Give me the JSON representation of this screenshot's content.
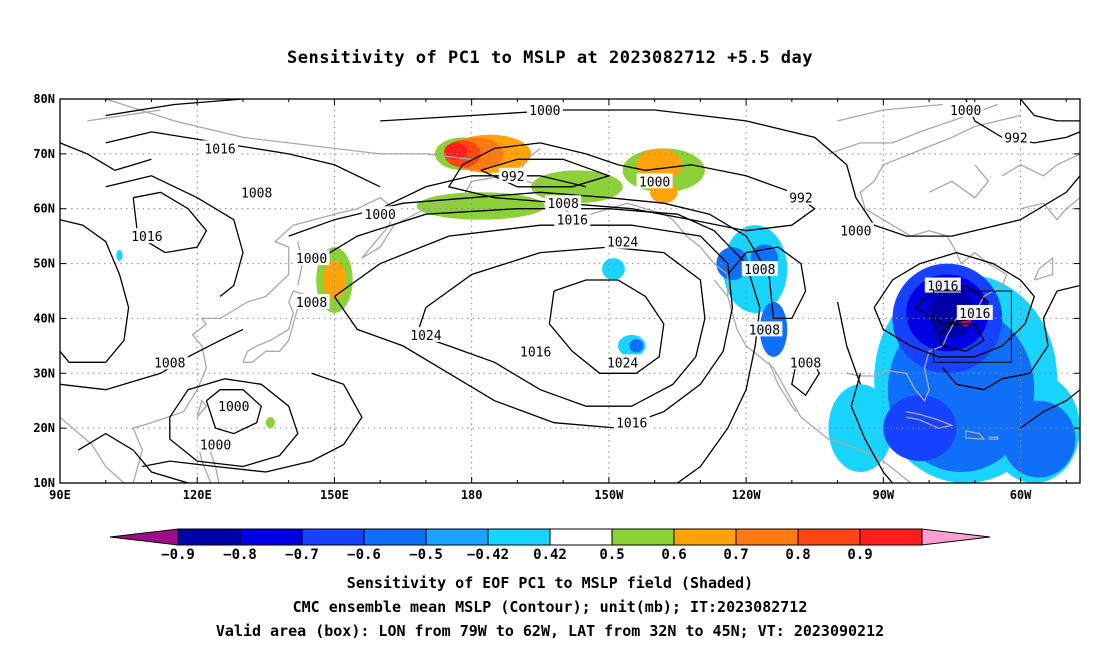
{
  "title": "Sensitivity of PC1 to MSLP at 2023082712 +5.5 day",
  "captions": [
    "Sensitivity of EOF PC1 to MSLP field (Shaded)",
    "CMC ensemble mean MSLP (Contour); unit(mb); IT:2023082712",
    "Valid area (box): LON from 79W to 62W, LAT from 32N to 45N; VT: 2023090212"
  ],
  "map": {
    "lat_labels": [
      "80N",
      "70N",
      "60N",
      "50N",
      "40N",
      "30N",
      "20N",
      "10N"
    ],
    "lon_labels": [
      "90E",
      "120E",
      "150E",
      "180",
      "150W",
      "120W",
      "90W",
      "60W"
    ],
    "extent": {
      "lon_min_east": 90,
      "lon_max_east": 313,
      "lat_min": 10,
      "lat_max": 80
    },
    "valid_box": {
      "lon_west": "79W",
      "lon_east": "62W",
      "lat_south": "32N",
      "lat_north": "45N"
    },
    "contour_labels": [
      {
        "text": "1000",
        "lon": 196,
        "lat": 78
      },
      {
        "text": "1000",
        "lon": 288,
        "lat": 78
      },
      {
        "text": "1016",
        "lon": 125,
        "lat": 71
      },
      {
        "text": "992",
        "lon": 299,
        "lat": 73
      },
      {
        "text": "992",
        "lon": 189,
        "lat": 66
      },
      {
        "text": "1000",
        "lon": 220,
        "lat": 65
      },
      {
        "text": "1008",
        "lon": 133,
        "lat": 63
      },
      {
        "text": "992",
        "lon": 252,
        "lat": 62
      },
      {
        "text": "1008",
        "lon": 200,
        "lat": 61
      },
      {
        "text": "1000",
        "lon": 160,
        "lat": 59
      },
      {
        "text": "1016",
        "lon": 202,
        "lat": 58
      },
      {
        "text": "1000",
        "lon": 264,
        "lat": 56
      },
      {
        "text": "1016",
        "lon": 109,
        "lat": 55
      },
      {
        "text": "1024",
        "lon": 213,
        "lat": 54
      },
      {
        "text": "1000",
        "lon": 145,
        "lat": 51
      },
      {
        "text": "1008",
        "lon": 243,
        "lat": 49
      },
      {
        "text": "1016",
        "lon": 283,
        "lat": 46
      },
      {
        "text": "1008",
        "lon": 145,
        "lat": 43
      },
      {
        "text": "1016",
        "lon": 290,
        "lat": 41
      },
      {
        "text": "1008",
        "lon": 244,
        "lat": 38
      },
      {
        "text": "1024",
        "lon": 170,
        "lat": 37
      },
      {
        "text": "1016",
        "lon": 194,
        "lat": 34
      },
      {
        "text": "1008",
        "lon": 114,
        "lat": 32
      },
      {
        "text": "1024",
        "lon": 213,
        "lat": 32
      },
      {
        "text": "1008",
        "lon": 253,
        "lat": 32
      },
      {
        "text": "1000",
        "lon": 128,
        "lat": 24
      },
      {
        "text": "1016",
        "lon": 215,
        "lat": 21
      },
      {
        "text": "1000",
        "lon": 124,
        "lat": 17
      }
    ]
  },
  "colorbar": {
    "labels": [
      "−0.9",
      "−0.8",
      "−0.7",
      "−0.6",
      "−0.5",
      "−0.42",
      "0.42",
      "0.5",
      "0.6",
      "0.7",
      "0.8",
      "0.9"
    ],
    "colors": [
      "#9b0f86",
      "#0000a8",
      "#0000e4",
      "#1641ff",
      "#0f6ff8",
      "#1aa3ff",
      "#19d4ff",
      "#ffffff",
      "#8cd137",
      "#ffa30a",
      "#ff7a13",
      "#ff4513",
      "#ff1e1e",
      "#fe9fd3"
    ]
  },
  "shading": [
    {
      "value": 0.5,
      "color": "#8cd137",
      "lon": 182,
      "lat": 60.5,
      "rlon": 14,
      "rlat": 2.5
    },
    {
      "value": 0.5,
      "color": "#8cd137",
      "lon": 222,
      "lat": 67,
      "rlon": 9,
      "rlat": 4
    },
    {
      "value": 0.5,
      "color": "#8cd137",
      "lon": 203,
      "lat": 64,
      "rlon": 10,
      "rlat": 3
    },
    {
      "value": 0.5,
      "color": "#8cd137",
      "lon": 178,
      "lat": 70,
      "rlon": 6,
      "rlat": 3
    },
    {
      "value": 0.6,
      "color": "#ffa30a",
      "lon": 184,
      "lat": 70,
      "rlon": 9,
      "rlat": 3.5
    },
    {
      "value": 0.6,
      "color": "#ffa30a",
      "lon": 221,
      "lat": 68,
      "rlon": 5,
      "rlat": 3
    },
    {
      "value": 0.6,
      "color": "#ffa30a",
      "lon": 222,
      "lat": 63,
      "rlon": 3,
      "rlat": 2
    },
    {
      "value": 0.7,
      "color": "#ff7a13",
      "lon": 181,
      "lat": 70,
      "rlon": 6,
      "rlat": 3
    },
    {
      "value": 0.8,
      "color": "#ff4513",
      "lon": 178,
      "lat": 70,
      "rlon": 4,
      "rlat": 2.5
    },
    {
      "value": 0.9,
      "color": "#ff1e1e",
      "lon": 176.5,
      "lat": 70.5,
      "rlon": 2.5,
      "rlat": 1.5
    },
    {
      "value": 0.5,
      "color": "#8cd137",
      "lon": 150,
      "lat": 47,
      "rlon": 4,
      "rlat": 6
    },
    {
      "value": 0.6,
      "color": "#ffa30a",
      "lon": 150,
      "lat": 47,
      "rlon": 2.5,
      "rlat": 3.5
    },
    {
      "value": 0.5,
      "color": "#8cd137",
      "lon": 136,
      "lat": 21,
      "rlon": 1,
      "rlat": 1
    },
    {
      "value": -0.42,
      "color": "#19d4ff",
      "lon": 103,
      "lat": 51.5,
      "rlon": 0.7,
      "rlat": 1
    },
    {
      "value": -0.42,
      "color": "#19d4ff",
      "lon": 211,
      "lat": 49,
      "rlon": 2.5,
      "rlat": 2
    },
    {
      "value": -0.42,
      "color": "#19d4ff",
      "lon": 215,
      "lat": 35,
      "rlon": 3,
      "rlat": 2
    },
    {
      "value": -0.5,
      "color": "#0f6ff8",
      "lon": 216,
      "lat": 35,
      "rlon": 1.5,
      "rlat": 1.2
    },
    {
      "value": -0.42,
      "color": "#19d4ff",
      "lon": 242,
      "lat": 49,
      "rlon": 7,
      "rlat": 8
    },
    {
      "value": -0.5,
      "color": "#0f6ff8",
      "lon": 237,
      "lat": 50,
      "rlon": 3.5,
      "rlat": 3
    },
    {
      "value": -0.5,
      "color": "#0f6ff8",
      "lon": 244,
      "lat": 51,
      "rlon": 3,
      "rlat": 2.5
    },
    {
      "value": -0.5,
      "color": "#0f6ff8",
      "lon": 246,
      "lat": 38,
      "rlon": 3,
      "rlat": 5
    },
    {
      "value": -0.42,
      "color": "#19d4ff",
      "lon": 288,
      "lat": 29,
      "rlon": 20,
      "rlat": 19
    },
    {
      "value": -0.42,
      "color": "#19d4ff",
      "lon": 303,
      "lat": 20,
      "rlon": 10,
      "rlat": 10
    },
    {
      "value": -0.42,
      "color": "#19d4ff",
      "lon": 265,
      "lat": 20,
      "rlon": 7,
      "rlat": 8
    },
    {
      "value": -0.5,
      "color": "#0f6ff8",
      "lon": 287,
      "lat": 27,
      "rlon": 16,
      "rlat": 15
    },
    {
      "value": -0.5,
      "color": "#0f6ff8",
      "lon": 304,
      "lat": 18,
      "rlon": 8,
      "rlat": 7
    },
    {
      "value": -0.6,
      "color": "#1641ff",
      "lon": 284,
      "lat": 40,
      "rlon": 12,
      "rlat": 10
    },
    {
      "value": -0.6,
      "color": "#1641ff",
      "lon": 278,
      "lat": 20,
      "rlon": 8,
      "rlat": 6
    },
    {
      "value": -0.7,
      "color": "#0000e4",
      "lon": 284,
      "lat": 41,
      "rlon": 9,
      "rlat": 7
    },
    {
      "value": -0.8,
      "color": "#0000a8",
      "lon": 285,
      "lat": 41,
      "rlon": 5,
      "rlat": 4.5
    },
    {
      "value": -0.9,
      "color": "#9b0f86",
      "lon": 288,
      "lat": 39.5,
      "rlon": 1.2,
      "rlat": 1
    }
  ]
}
